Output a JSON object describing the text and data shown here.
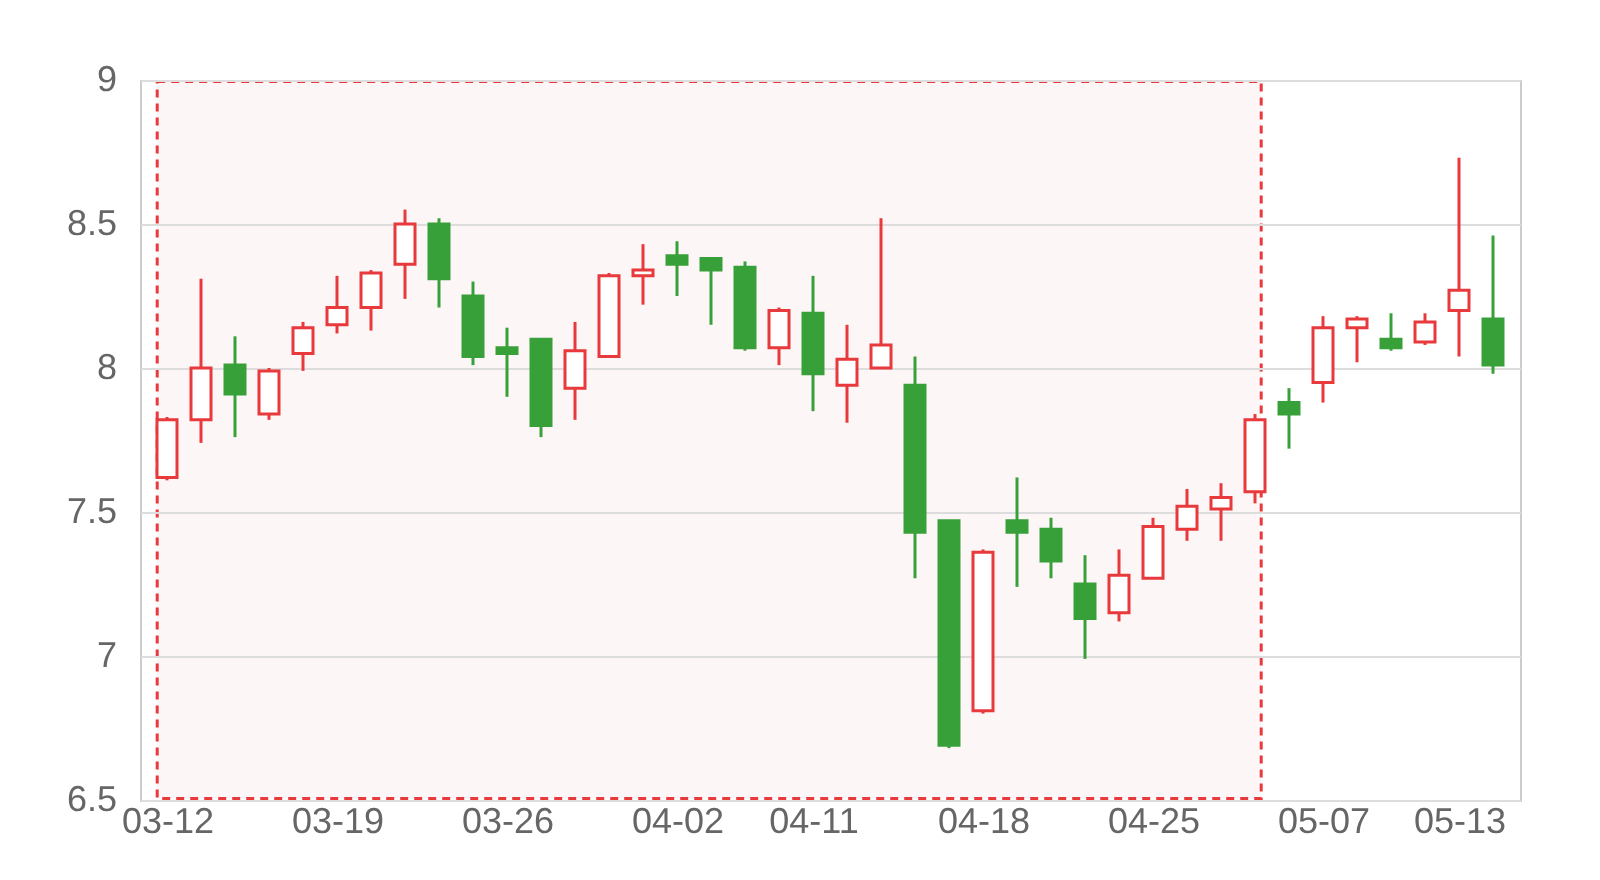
{
  "chart_data": {
    "type": "candlestick",
    "categories": [
      "03-12",
      null,
      null,
      null,
      null,
      "03-19",
      null,
      null,
      null,
      null,
      "03-26",
      null,
      null,
      null,
      null,
      "04-02",
      null,
      null,
      null,
      "04-11",
      null,
      null,
      null,
      null,
      "04-18",
      null,
      null,
      null,
      null,
      "04-25",
      null,
      null,
      null,
      null,
      "05-07",
      null,
      null,
      null,
      "05-13",
      null
    ],
    "ohlc": [
      [
        7.62,
        7.83,
        7.61,
        7.82
      ],
      [
        7.82,
        8.31,
        7.74,
        8.0
      ],
      [
        8.01,
        8.11,
        7.76,
        7.91
      ],
      [
        7.84,
        8.0,
        7.82,
        7.99
      ],
      [
        8.05,
        8.16,
        7.99,
        8.14
      ],
      [
        8.15,
        8.32,
        8.12,
        8.21
      ],
      [
        8.21,
        8.34,
        8.13,
        8.33
      ],
      [
        8.36,
        8.55,
        8.24,
        8.5
      ],
      [
        8.5,
        8.52,
        8.21,
        8.31
      ],
      [
        8.25,
        8.3,
        8.01,
        8.04
      ],
      [
        8.07,
        8.14,
        7.9,
        8.05
      ],
      [
        8.1,
        8.1,
        7.76,
        7.8
      ],
      [
        7.93,
        8.16,
        7.82,
        8.06
      ],
      [
        8.04,
        8.33,
        8.04,
        8.32
      ],
      [
        8.32,
        8.43,
        8.22,
        8.34
      ],
      [
        8.39,
        8.44,
        8.25,
        8.36
      ],
      [
        8.38,
        8.38,
        8.15,
        8.34
      ],
      [
        8.35,
        8.37,
        8.06,
        8.07
      ],
      [
        8.07,
        8.21,
        8.01,
        8.2
      ],
      [
        8.19,
        8.32,
        7.85,
        7.98
      ],
      [
        7.94,
        8.15,
        7.81,
        8.03
      ],
      [
        8.0,
        8.52,
        8.0,
        8.08
      ],
      [
        7.94,
        8.04,
        7.27,
        7.43
      ],
      [
        7.47,
        7.47,
        6.68,
        6.69
      ],
      [
        6.81,
        7.37,
        6.8,
        7.36
      ],
      [
        7.47,
        7.62,
        7.24,
        7.43
      ],
      [
        7.44,
        7.48,
        7.27,
        7.33
      ],
      [
        7.25,
        7.35,
        6.99,
        7.13
      ],
      [
        7.15,
        7.37,
        7.12,
        7.28
      ],
      [
        7.27,
        7.48,
        7.27,
        7.45
      ],
      [
        7.44,
        7.58,
        7.4,
        7.52
      ],
      [
        7.51,
        7.6,
        7.4,
        7.55
      ],
      [
        7.57,
        7.84,
        7.53,
        7.82
      ],
      [
        7.88,
        7.93,
        7.72,
        7.84
      ],
      [
        7.95,
        8.18,
        7.88,
        8.14
      ],
      [
        8.14,
        8.18,
        8.02,
        8.17
      ],
      [
        8.1,
        8.19,
        8.06,
        8.07
      ],
      [
        8.09,
        8.19,
        8.08,
        8.16
      ],
      [
        8.2,
        8.73,
        8.04,
        8.27
      ],
      [
        8.17,
        8.46,
        7.98,
        8.01
      ]
    ],
    "colors": [
      "#e8393c",
      "#e8393c",
      "#38a038",
      "#e8393c",
      "#e8393c",
      "#e8393c",
      "#e8393c",
      "#e8393c",
      "#38a038",
      "#38a038",
      "#38a038",
      "#38a038",
      "#e8393c",
      "#e8393c",
      "#e8393c",
      "#38a038",
      "#38a038",
      "#38a038",
      "#e8393c",
      "#38a038",
      "#e8393c",
      "#e8393c",
      "#38a038",
      "#38a038",
      "#e8393c",
      "#38a038",
      "#38a038",
      "#38a038",
      "#e8393c",
      "#e8393c",
      "#e8393c",
      "#e8393c",
      "#e8393c",
      "#38a038",
      "#e8393c",
      "#e8393c",
      "#38a038",
      "#e8393c",
      "#e8393c",
      "#38a038"
    ],
    "ylim": [
      6.5,
      9
    ],
    "yticks": [
      6.5,
      7,
      7.5,
      8,
      8.5,
      9
    ],
    "grid": "y"
  }
}
